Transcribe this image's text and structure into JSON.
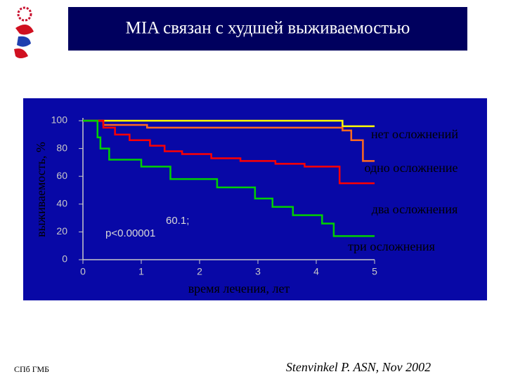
{
  "chart_data": {
    "type": "line",
    "title": "MIA связан с худшей выживаемостью",
    "xlabel": "время лечения,  лет",
    "ylabel": "выживаемость, %",
    "xlim": [
      0,
      5
    ],
    "ylim": [
      0,
      100
    ],
    "xticks": [
      0,
      1,
      2,
      3,
      4,
      5
    ],
    "yticks": [
      0,
      20,
      40,
      60,
      80,
      100
    ],
    "series": [
      {
        "name": "нет осложнений",
        "color": "#ffff00",
        "x": [
          0,
          4.45,
          5
        ],
        "values": [
          100,
          96,
          96
        ]
      },
      {
        "name": "одно осложнение",
        "color": "#ff6a20",
        "x": [
          0,
          0.35,
          1.1,
          4.45,
          4.6,
          4.8,
          5
        ],
        "values": [
          100,
          97,
          95,
          93,
          86,
          71,
          71
        ]
      },
      {
        "name": "два осложнения",
        "color": "#ff0000",
        "x": [
          0,
          0.35,
          0.55,
          0.8,
          1.15,
          1.4,
          1.7,
          2.2,
          2.7,
          3.3,
          3.8,
          4.4,
          5
        ],
        "values": [
          100,
          95,
          90,
          86,
          82,
          78,
          76,
          73,
          71,
          69,
          67,
          55,
          55
        ]
      },
      {
        "name": "три осложнения",
        "color": "#00d000",
        "x": [
          0,
          0.25,
          0.3,
          0.45,
          1.0,
          1.5,
          2.3,
          2.95,
          3.25,
          3.6,
          4.1,
          4.3,
          5
        ],
        "values": [
          100,
          88,
          80,
          72,
          67,
          58,
          52,
          44,
          38,
          32,
          26,
          17,
          17
        ]
      }
    ],
    "annotations": [
      "60.1;",
      "p<0.00001"
    ]
  },
  "footer": {
    "left": "СПб ГМБ",
    "source": "Stenvinkel P. ASN, Nov 2002"
  }
}
